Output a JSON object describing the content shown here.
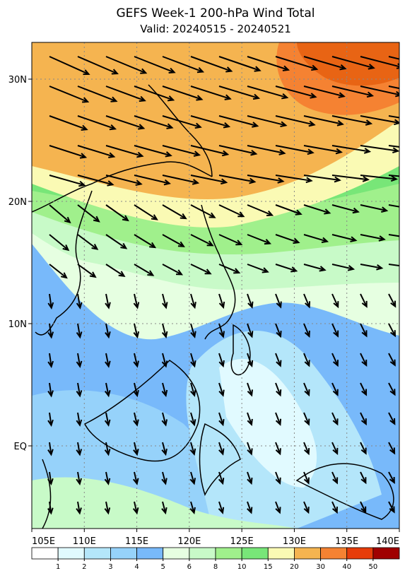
{
  "title": "GEFS Week-1 200-hPa Wind Total",
  "subtitle": "Valid: 20240515 - 20240521",
  "map": {
    "lon_labels": [
      "105E",
      "110E",
      "115E",
      "120E",
      "125E",
      "130E",
      "135E",
      "140E"
    ],
    "lat_labels": [
      "30N",
      "20N",
      "10N",
      "EQ"
    ]
  },
  "colorbar": {
    "levels": [
      1,
      2,
      3,
      4,
      5,
      6,
      8,
      10,
      15,
      20,
      30,
      40,
      50
    ],
    "colors": [
      "#ffffff",
      "#e1faff",
      "#b4e6fa",
      "#96d2fa",
      "#78b9fa",
      "#e6ffe1",
      "#c8fac8",
      "#a0f08c",
      "#78e678",
      "#fafab4",
      "#f5b450",
      "#f58232",
      "#e63c0a",
      "#a00000"
    ]
  }
}
